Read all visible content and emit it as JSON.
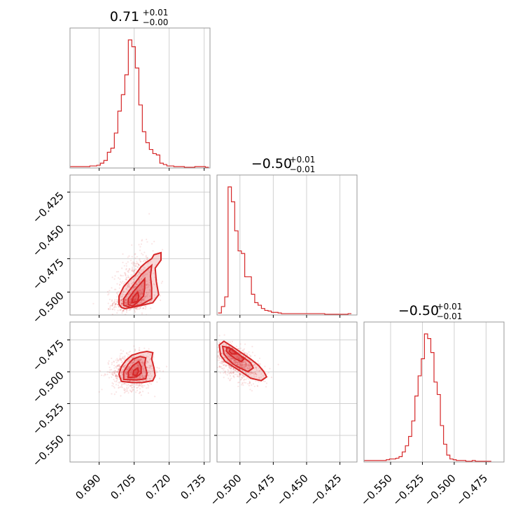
{
  "chart_data": {
    "type": "corner",
    "color": "#d62728",
    "grid": true,
    "parameters": [
      {
        "title_main": "0.71",
        "title_plus": "+0.01",
        "title_minus": "−0.00",
        "range": [
          0.6775,
          0.7375
        ],
        "ticks": [
          0.69,
          0.705,
          0.72,
          0.735
        ],
        "tick_labels": [
          "0.690",
          "0.705",
          "0.720",
          "0.735"
        ],
        "hist": {
          "start": 0.677,
          "width": 0.0015,
          "counts": [
            1,
            1,
            1,
            1,
            1,
            1,
            2,
            2,
            3,
            6,
            10,
            22,
            28,
            50,
            82,
            106,
            135,
            186,
            176,
            145,
            91,
            52,
            36,
            26,
            20,
            18,
            6,
            4,
            2,
            2,
            1,
            1,
            1,
            0,
            0,
            0,
            1,
            1,
            1,
            0
          ]
        }
      },
      {
        "title_main": "−0.50",
        "title_plus": "+0.01",
        "title_minus": "−0.01",
        "range": [
          -0.5172,
          -0.4122
        ],
        "ticks": [
          -0.5,
          -0.475,
          -0.45,
          -0.425
        ],
        "tick_labels": [
          "−0.500",
          "−0.475",
          "−0.450",
          "−0.425"
        ],
        "hist": {
          "start": -0.5164,
          "width": 0.0025,
          "counts": [
            2,
            12,
            27,
            197,
            174,
            129,
            98,
            94,
            58,
            58,
            31,
            18,
            14,
            9,
            6,
            5,
            3,
            3,
            2,
            1,
            1,
            1,
            1,
            1,
            1,
            1,
            1,
            1,
            1,
            1,
            1,
            1,
            0,
            0,
            0,
            0,
            0,
            0,
            0,
            1
          ]
        }
      },
      {
        "title_main": "−0.50",
        "title_plus": "+0.01",
        "title_minus": "−0.01",
        "range": [
          -0.5709,
          -0.4609
        ],
        "ticks": [
          -0.55,
          -0.525,
          -0.5,
          -0.475
        ],
        "tick_labels": [
          "−0.550",
          "−0.525",
          "−0.500",
          "−0.475"
        ],
        "hist": {
          "start": -0.5709,
          "width": 0.0025,
          "counts": [
            1,
            1,
            1,
            1,
            1,
            1,
            1,
            2,
            3,
            3,
            4,
            6,
            12,
            20,
            32,
            52,
            84,
            110,
            132,
            164,
            158,
            140,
            102,
            86,
            46,
            22,
            8,
            3,
            2,
            1,
            1,
            1,
            0,
            0,
            1,
            0,
            0,
            0,
            0,
            0
          ]
        }
      }
    ],
    "contour_levels": [
      0.118,
      0.393,
      0.675,
      0.865
    ],
    "pairs": [
      {
        "row": 1,
        "col": 0,
        "mean": [
          0.7045,
          -0.505
        ],
        "sd": [
          0.0042,
          0.0065
        ],
        "rho": 0.3,
        "skew_y": 2.6,
        "contours": [
          [
            [
              0.6995,
              -0.5115
            ],
            [
              0.6985,
              -0.509
            ],
            [
              0.6985,
              -0.503
            ],
            [
              0.7005,
              -0.496
            ],
            [
              0.7035,
              -0.49
            ],
            [
              0.7055,
              -0.487
            ],
            [
              0.708,
              -0.481
            ],
            [
              0.71,
              -0.478
            ],
            [
              0.7125,
              -0.475
            ],
            [
              0.7135,
              -0.472
            ],
            [
              0.7165,
              -0.4705
            ],
            [
              0.7165,
              -0.476
            ],
            [
              0.714,
              -0.482
            ],
            [
              0.7145,
              -0.492
            ],
            [
              0.7155,
              -0.502
            ],
            [
              0.713,
              -0.508
            ],
            [
              0.707,
              -0.5105
            ],
            [
              0.701,
              -0.5125
            ]
          ],
          [
            [
              0.7005,
              -0.51
            ],
            [
              0.7005,
              -0.505
            ],
            [
              0.7025,
              -0.5
            ],
            [
              0.705,
              -0.494
            ],
            [
              0.708,
              -0.487
            ],
            [
              0.7105,
              -0.483
            ],
            [
              0.7125,
              -0.48
            ],
            [
              0.712,
              -0.488
            ],
            [
              0.7125,
              -0.497
            ],
            [
              0.7125,
              -0.505
            ],
            [
              0.708,
              -0.5095
            ],
            [
              0.7035,
              -0.5115
            ]
          ],
          [
            [
              0.7025,
              -0.5095
            ],
            [
              0.7025,
              -0.505
            ],
            [
              0.705,
              -0.499
            ],
            [
              0.708,
              -0.493
            ],
            [
              0.7095,
              -0.49
            ],
            [
              0.7095,
              -0.497
            ],
            [
              0.709,
              -0.503
            ],
            [
              0.7065,
              -0.5075
            ],
            [
              0.7045,
              -0.5105
            ]
          ],
          [
            [
              0.704,
              -0.508
            ],
            [
              0.7045,
              -0.504
            ],
            [
              0.7065,
              -0.5
            ],
            [
              0.707,
              -0.503
            ],
            [
              0.7065,
              -0.507
            ]
          ]
        ]
      },
      {
        "row": 2,
        "col": 0,
        "mean": [
          0.7045,
          -0.5
        ],
        "sd": [
          0.0045,
          0.007
        ],
        "rho": 0.05,
        "skew_y": 0,
        "contours": [
          [
            [
              0.6995,
              -0.5075
            ],
            [
              0.6985,
              -0.502
            ],
            [
              0.6995,
              -0.496
            ],
            [
              0.7015,
              -0.491
            ],
            [
              0.704,
              -0.487
            ],
            [
              0.7075,
              -0.485
            ],
            [
              0.7105,
              -0.484
            ],
            [
              0.713,
              -0.485
            ],
            [
              0.7125,
              -0.49
            ],
            [
              0.7135,
              -0.497
            ],
            [
              0.714,
              -0.503
            ],
            [
              0.713,
              -0.507
            ],
            [
              0.7085,
              -0.5085
            ],
            [
              0.704,
              -0.5085
            ]
          ],
          [
            [
              0.7005,
              -0.506
            ],
            [
              0.7005,
              -0.5
            ],
            [
              0.7025,
              -0.494
            ],
            [
              0.7045,
              -0.49
            ],
            [
              0.7075,
              -0.488
            ],
            [
              0.71,
              -0.489
            ],
            [
              0.7095,
              -0.494
            ],
            [
              0.7105,
              -0.501
            ],
            [
              0.71,
              -0.5055
            ],
            [
              0.706,
              -0.5065
            ]
          ],
          [
            [
              0.7025,
              -0.5045
            ],
            [
              0.7025,
              -0.5
            ],
            [
              0.7045,
              -0.495
            ],
            [
              0.707,
              -0.492
            ],
            [
              0.708,
              -0.496
            ],
            [
              0.708,
              -0.501
            ],
            [
              0.706,
              -0.504
            ]
          ],
          [
            [
              0.7045,
              -0.5025
            ],
            [
              0.7048,
              -0.499
            ],
            [
              0.7065,
              -0.497
            ],
            [
              0.7068,
              -0.5
            ],
            [
              0.706,
              -0.503
            ]
          ]
        ]
      },
      {
        "row": 2,
        "col": 1,
        "mean": [
          -0.502,
          -0.493
        ],
        "sd": [
          0.0085,
          0.0075
        ],
        "rho": -0.55,
        "skew_y": 0,
        "contours": [
          [
            [
              -0.5145,
              -0.487
            ],
            [
              -0.5155,
              -0.479
            ],
            [
              -0.512,
              -0.476
            ],
            [
              -0.506,
              -0.48
            ],
            [
              -0.499,
              -0.485
            ],
            [
              -0.492,
              -0.49
            ],
            [
              -0.486,
              -0.495
            ],
            [
              -0.482,
              -0.5
            ],
            [
              -0.48,
              -0.504
            ],
            [
              -0.484,
              -0.507
            ],
            [
              -0.492,
              -0.505
            ],
            [
              -0.499,
              -0.5
            ],
            [
              -0.505,
              -0.496
            ],
            [
              -0.511,
              -0.492
            ]
          ],
          [
            [
              -0.512,
              -0.486
            ],
            [
              -0.513,
              -0.48
            ],
            [
              -0.508,
              -0.481
            ],
            [
              -0.503,
              -0.485
            ],
            [
              -0.497,
              -0.489
            ],
            [
              -0.492,
              -0.493
            ],
            [
              -0.49,
              -0.497
            ],
            [
              -0.494,
              -0.5
            ],
            [
              -0.5,
              -0.497
            ],
            [
              -0.505,
              -0.494
            ],
            [
              -0.509,
              -0.49
            ]
          ],
          [
            [
              -0.51,
              -0.484
            ],
            [
              -0.51,
              -0.481
            ],
            [
              -0.506,
              -0.482
            ],
            [
              -0.501,
              -0.486
            ],
            [
              -0.497,
              -0.49
            ],
            [
              -0.499,
              -0.492
            ],
            [
              -0.503,
              -0.49
            ],
            [
              -0.507,
              -0.487
            ]
          ],
          [
            [
              -0.508,
              -0.484
            ],
            [
              -0.507,
              -0.482
            ],
            [
              -0.504,
              -0.484
            ],
            [
              -0.503,
              -0.486
            ],
            [
              -0.506,
              -0.486
            ]
          ]
        ]
      }
    ]
  }
}
